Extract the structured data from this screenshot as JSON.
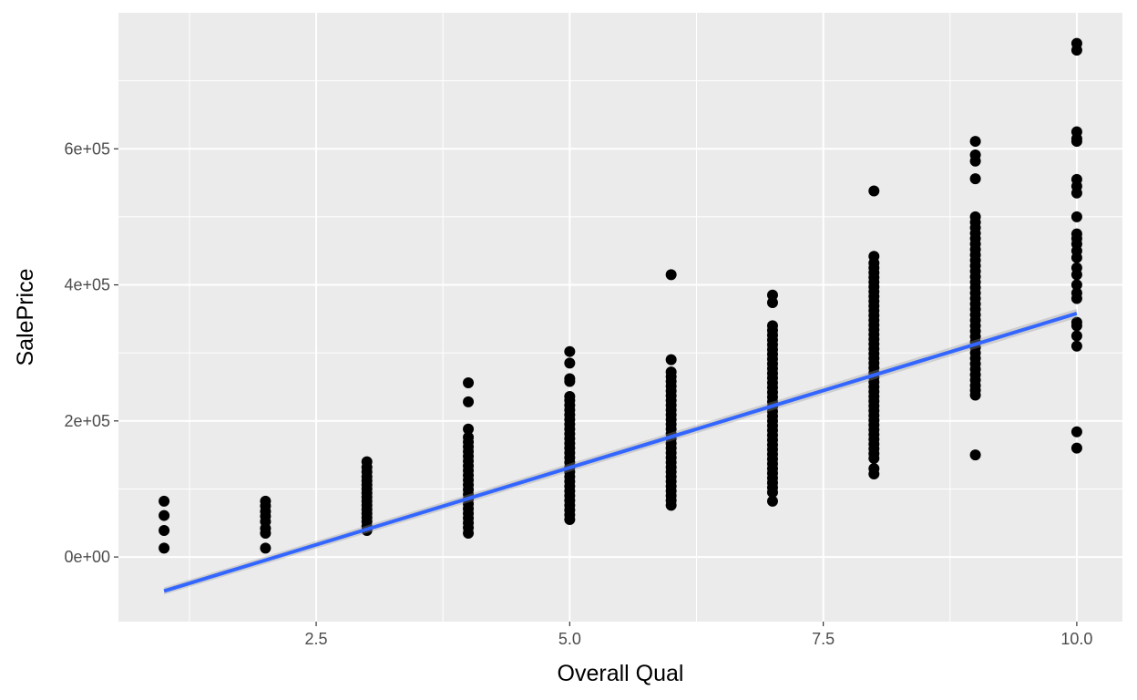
{
  "chart_data": {
    "type": "scatter",
    "title": "",
    "xlabel": "Overall Qual",
    "ylabel": "SalePrice",
    "xlim": [
      0.55,
      10.45
    ],
    "ylim": [
      -95000,
      800000
    ],
    "x_ticks": [
      2.5,
      5.0,
      7.5,
      10.0
    ],
    "x_tick_labels": [
      "2.5",
      "5.0",
      "7.5",
      "10.0"
    ],
    "x_minor_ticks": [
      1.25,
      3.75,
      6.25,
      8.75
    ],
    "y_ticks": [
      0,
      200000,
      400000,
      600000
    ],
    "y_tick_labels": [
      "0e+00",
      "2e+05",
      "4e+05",
      "6e+05"
    ],
    "y_minor_ticks": [
      100000,
      300000,
      500000,
      700000
    ],
    "grid": true,
    "legend": "none",
    "points": [
      [
        1,
        13000
      ],
      [
        1,
        39000
      ],
      [
        1,
        61000
      ],
      [
        1,
        82000
      ],
      [
        2,
        13000
      ],
      [
        2,
        35000
      ],
      [
        2,
        42000
      ],
      [
        2,
        52000
      ],
      [
        2,
        60000
      ],
      [
        2,
        67000
      ],
      [
        2,
        75000
      ],
      [
        2,
        82000
      ],
      [
        3,
        39000
      ],
      [
        3,
        45000
      ],
      [
        3,
        52000
      ],
      [
        3,
        58000
      ],
      [
        3,
        64000
      ],
      [
        3,
        70000
      ],
      [
        3,
        76000
      ],
      [
        3,
        82000
      ],
      [
        3,
        88000
      ],
      [
        3,
        94000
      ],
      [
        3,
        100000
      ],
      [
        3,
        106000
      ],
      [
        3,
        112000
      ],
      [
        3,
        118000
      ],
      [
        3,
        125000
      ],
      [
        3,
        132000
      ],
      [
        3,
        140000
      ],
      [
        4,
        35000
      ],
      [
        4,
        43000
      ],
      [
        4,
        50000
      ],
      [
        4,
        57000
      ],
      [
        4,
        64000
      ],
      [
        4,
        71000
      ],
      [
        4,
        78000
      ],
      [
        4,
        85000
      ],
      [
        4,
        92000
      ],
      [
        4,
        99000
      ],
      [
        4,
        106000
      ],
      [
        4,
        113000
      ],
      [
        4,
        120000
      ],
      [
        4,
        127000
      ],
      [
        4,
        134000
      ],
      [
        4,
        141000
      ],
      [
        4,
        148000
      ],
      [
        4,
        155000
      ],
      [
        4,
        162000
      ],
      [
        4,
        169000
      ],
      [
        4,
        176000
      ],
      [
        4,
        188000
      ],
      [
        4,
        228000
      ],
      [
        4,
        256000
      ],
      [
        5,
        55000
      ],
      [
        5,
        62000
      ],
      [
        5,
        69000
      ],
      [
        5,
        76000
      ],
      [
        5,
        83000
      ],
      [
        5,
        90000
      ],
      [
        5,
        97000
      ],
      [
        5,
        104000
      ],
      [
        5,
        111000
      ],
      [
        5,
        118000
      ],
      [
        5,
        125000
      ],
      [
        5,
        132000
      ],
      [
        5,
        139000
      ],
      [
        5,
        146000
      ],
      [
        5,
        153000
      ],
      [
        5,
        160000
      ],
      [
        5,
        167000
      ],
      [
        5,
        174000
      ],
      [
        5,
        181000
      ],
      [
        5,
        188000
      ],
      [
        5,
        195000
      ],
      [
        5,
        202000
      ],
      [
        5,
        209000
      ],
      [
        5,
        216000
      ],
      [
        5,
        223000
      ],
      [
        5,
        230000
      ],
      [
        5,
        236000
      ],
      [
        5,
        258000
      ],
      [
        5,
        262000
      ],
      [
        5,
        285000
      ],
      [
        5,
        302000
      ],
      [
        6,
        76000
      ],
      [
        6,
        83000
      ],
      [
        6,
        90000
      ],
      [
        6,
        97000
      ],
      [
        6,
        104000
      ],
      [
        6,
        111000
      ],
      [
        6,
        118000
      ],
      [
        6,
        125000
      ],
      [
        6,
        132000
      ],
      [
        6,
        139000
      ],
      [
        6,
        146000
      ],
      [
        6,
        153000
      ],
      [
        6,
        160000
      ],
      [
        6,
        167000
      ],
      [
        6,
        174000
      ],
      [
        6,
        181000
      ],
      [
        6,
        188000
      ],
      [
        6,
        195000
      ],
      [
        6,
        202000
      ],
      [
        6,
        209000
      ],
      [
        6,
        216000
      ],
      [
        6,
        223000
      ],
      [
        6,
        230000
      ],
      [
        6,
        237000
      ],
      [
        6,
        244000
      ],
      [
        6,
        251000
      ],
      [
        6,
        258000
      ],
      [
        6,
        265000
      ],
      [
        6,
        272000
      ],
      [
        6,
        290000
      ],
      [
        6,
        415000
      ],
      [
        7,
        82000
      ],
      [
        7,
        95000
      ],
      [
        7,
        102000
      ],
      [
        7,
        109000
      ],
      [
        7,
        116000
      ],
      [
        7,
        123000
      ],
      [
        7,
        130000
      ],
      [
        7,
        137000
      ],
      [
        7,
        144000
      ],
      [
        7,
        151000
      ],
      [
        7,
        158000
      ],
      [
        7,
        165000
      ],
      [
        7,
        172000
      ],
      [
        7,
        179000
      ],
      [
        7,
        186000
      ],
      [
        7,
        193000
      ],
      [
        7,
        200000
      ],
      [
        7,
        207000
      ],
      [
        7,
        214000
      ],
      [
        7,
        221000
      ],
      [
        7,
        228000
      ],
      [
        7,
        235000
      ],
      [
        7,
        242000
      ],
      [
        7,
        249000
      ],
      [
        7,
        256000
      ],
      [
        7,
        263000
      ],
      [
        7,
        270000
      ],
      [
        7,
        277000
      ],
      [
        7,
        284000
      ],
      [
        7,
        291000
      ],
      [
        7,
        298000
      ],
      [
        7,
        305000
      ],
      [
        7,
        312000
      ],
      [
        7,
        319000
      ],
      [
        7,
        326000
      ],
      [
        7,
        333000
      ],
      [
        7,
        340000
      ],
      [
        7,
        374000
      ],
      [
        7,
        385000
      ],
      [
        8,
        122000
      ],
      [
        8,
        130000
      ],
      [
        8,
        145000
      ],
      [
        8,
        152000
      ],
      [
        8,
        159000
      ],
      [
        8,
        166000
      ],
      [
        8,
        173000
      ],
      [
        8,
        180000
      ],
      [
        8,
        187000
      ],
      [
        8,
        194000
      ],
      [
        8,
        201000
      ],
      [
        8,
        208000
      ],
      [
        8,
        215000
      ],
      [
        8,
        222000
      ],
      [
        8,
        229000
      ],
      [
        8,
        236000
      ],
      [
        8,
        243000
      ],
      [
        8,
        250000
      ],
      [
        8,
        257000
      ],
      [
        8,
        264000
      ],
      [
        8,
        271000
      ],
      [
        8,
        278000
      ],
      [
        8,
        285000
      ],
      [
        8,
        292000
      ],
      [
        8,
        299000
      ],
      [
        8,
        306000
      ],
      [
        8,
        313000
      ],
      [
        8,
        320000
      ],
      [
        8,
        327000
      ],
      [
        8,
        334000
      ],
      [
        8,
        341000
      ],
      [
        8,
        348000
      ],
      [
        8,
        355000
      ],
      [
        8,
        362000
      ],
      [
        8,
        369000
      ],
      [
        8,
        376000
      ],
      [
        8,
        383000
      ],
      [
        8,
        390000
      ],
      [
        8,
        397000
      ],
      [
        8,
        404000
      ],
      [
        8,
        411000
      ],
      [
        8,
        418000
      ],
      [
        8,
        425000
      ],
      [
        8,
        432000
      ],
      [
        8,
        442000
      ],
      [
        8,
        538000
      ],
      [
        9,
        150000
      ],
      [
        9,
        238000
      ],
      [
        9,
        245000
      ],
      [
        9,
        252000
      ],
      [
        9,
        260000
      ],
      [
        9,
        268000
      ],
      [
        9,
        276000
      ],
      [
        9,
        284000
      ],
      [
        9,
        292000
      ],
      [
        9,
        300000
      ],
      [
        9,
        308000
      ],
      [
        9,
        316000
      ],
      [
        9,
        324000
      ],
      [
        9,
        332000
      ],
      [
        9,
        340000
      ],
      [
        9,
        348000
      ],
      [
        9,
        356000
      ],
      [
        9,
        364000
      ],
      [
        9,
        372000
      ],
      [
        9,
        380000
      ],
      [
        9,
        388000
      ],
      [
        9,
        396000
      ],
      [
        9,
        404000
      ],
      [
        9,
        412000
      ],
      [
        9,
        420000
      ],
      [
        9,
        428000
      ],
      [
        9,
        436000
      ],
      [
        9,
        444000
      ],
      [
        9,
        452000
      ],
      [
        9,
        460000
      ],
      [
        9,
        468000
      ],
      [
        9,
        476000
      ],
      [
        9,
        484000
      ],
      [
        9,
        492000
      ],
      [
        9,
        500000
      ],
      [
        9,
        556000
      ],
      [
        9,
        582000
      ],
      [
        9,
        591000
      ],
      [
        9,
        611000
      ],
      [
        10,
        160000
      ],
      [
        10,
        184000
      ],
      [
        10,
        310000
      ],
      [
        10,
        325000
      ],
      [
        10,
        340000
      ],
      [
        10,
        345000
      ],
      [
        10,
        380000
      ],
      [
        10,
        388000
      ],
      [
        10,
        400000
      ],
      [
        10,
        415000
      ],
      [
        10,
        425000
      ],
      [
        10,
        440000
      ],
      [
        10,
        450000
      ],
      [
        10,
        460000
      ],
      [
        10,
        468000
      ],
      [
        10,
        475000
      ],
      [
        10,
        500000
      ],
      [
        10,
        535000
      ],
      [
        10,
        545000
      ],
      [
        10,
        555000
      ],
      [
        10,
        611000
      ],
      [
        10,
        615000
      ],
      [
        10,
        625000
      ],
      [
        10,
        745000
      ],
      [
        10,
        755000
      ]
    ],
    "trend_line": {
      "type": "linear fit",
      "x": [
        1,
        10
      ],
      "y": [
        -50000,
        358000
      ],
      "color": "#3366ff"
    },
    "colors": {
      "panel": "#ebebeb",
      "grid": "#ffffff",
      "point": "#000000",
      "line": "#3366ff"
    }
  }
}
